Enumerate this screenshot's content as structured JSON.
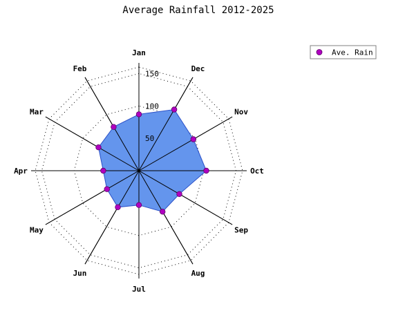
{
  "chart_data": {
    "type": "radar",
    "title": "Average Rainfall 2012-2025",
    "categories": [
      "Jan",
      "Feb",
      "Mar",
      "Apr",
      "May",
      "Jun",
      "Jul",
      "Aug",
      "Sep",
      "Oct",
      "Nov",
      "Dec"
    ],
    "series": [
      {
        "name": "Ave. Rain",
        "values": [
          87,
          78,
          72,
          55,
          57,
          65,
          53,
          73,
          72,
          104,
          97,
          109
        ]
      }
    ],
    "r_ticks": [
      50,
      100,
      150
    ],
    "rlim": [
      0,
      160
    ],
    "grid": true,
    "grid_style": "dotted",
    "legend": {
      "placement": "top-right"
    },
    "colors": {
      "fill": "#6495ED",
      "stroke": "#2b50c8",
      "marker": "#b000c0",
      "grid": "#000000"
    }
  }
}
